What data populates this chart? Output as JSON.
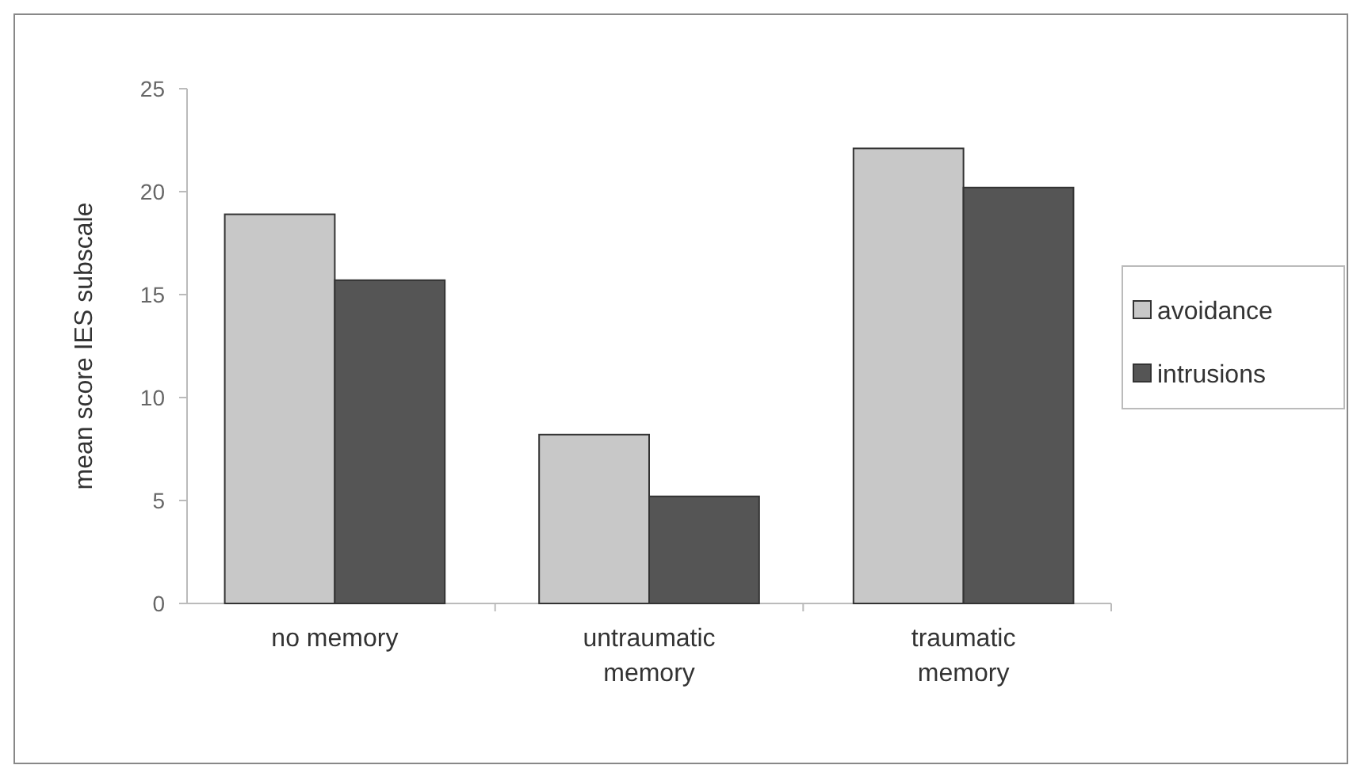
{
  "chart_data": {
    "type": "bar",
    "ylabel": "mean score IES subscale",
    "categories": [
      "no memory",
      "untraumatic memory",
      "traumatic memory"
    ],
    "series": [
      {
        "name": "avoidance",
        "color": "#c8c8c8",
        "values": [
          18.9,
          8.2,
          22.1
        ]
      },
      {
        "name": "intrusions",
        "color": "#555555",
        "values": [
          15.7,
          5.2,
          20.2
        ]
      }
    ],
    "ylim": [
      0,
      25
    ],
    "yticks": [
      0,
      5,
      10,
      15,
      20,
      25
    ],
    "grid": false,
    "legend": "right"
  }
}
